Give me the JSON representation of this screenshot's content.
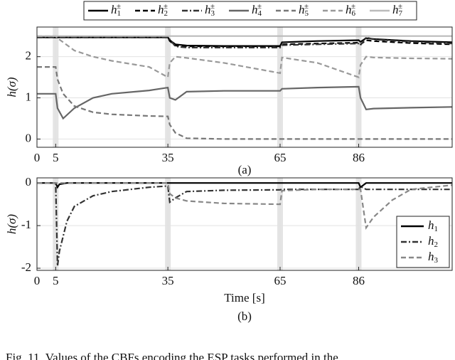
{
  "chart_data": [
    {
      "type": "line",
      "ylabel": "h(σ)",
      "caption": "(a)",
      "grid": true,
      "legend": "top-outside",
      "xlim": [
        0,
        111
      ],
      "ylim": [
        -0.2,
        2.72
      ],
      "xticks": [
        0,
        5,
        35,
        65,
        86
      ],
      "yticks": [
        0,
        1,
        2
      ],
      "highlights": [
        5,
        35,
        65,
        86
      ],
      "x": [
        0,
        5,
        5.5,
        7,
        10,
        15,
        20,
        30,
        35,
        35.5,
        37,
        40,
        50,
        65,
        65.5,
        75,
        86,
        86.5,
        88,
        90,
        100,
        111
      ],
      "series": [
        {
          "name": "h",
          "sub": "1",
          "sup": "±",
          "color": "#000000",
          "dash": "solid",
          "values": [
            2.47,
            2.47,
            2.47,
            2.47,
            2.47,
            2.47,
            2.47,
            2.47,
            2.47,
            2.4,
            2.3,
            2.27,
            2.26,
            2.26,
            2.35,
            2.38,
            2.4,
            2.36,
            2.45,
            2.43,
            2.38,
            2.35
          ]
        },
        {
          "name": "h",
          "sub": "2",
          "sup": "±",
          "color": "#000000",
          "dash": "dashed",
          "values": [
            2.47,
            2.47,
            2.47,
            2.47,
            2.47,
            2.47,
            2.47,
            2.47,
            2.47,
            2.38,
            2.27,
            2.25,
            2.25,
            2.25,
            2.3,
            2.32,
            2.34,
            2.3,
            2.4,
            2.38,
            2.33,
            2.3
          ]
        },
        {
          "name": "h",
          "sub": "3",
          "sup": "±",
          "color": "#333333",
          "dash": "dashdot",
          "values": [
            2.47,
            2.47,
            2.47,
            2.47,
            2.47,
            2.47,
            2.47,
            2.47,
            2.47,
            2.42,
            2.25,
            2.22,
            2.22,
            2.22,
            2.28,
            2.3,
            2.32,
            2.28,
            2.47,
            2.42,
            2.36,
            2.32
          ]
        },
        {
          "name": "h",
          "sub": "4",
          "sup": "±",
          "color": "#666666",
          "dash": "solid",
          "values": [
            1.1,
            1.1,
            0.75,
            0.5,
            0.75,
            1.0,
            1.1,
            1.18,
            1.25,
            1.0,
            0.95,
            1.15,
            1.17,
            1.17,
            1.22,
            1.25,
            1.27,
            1.0,
            0.72,
            0.74,
            0.76,
            0.78
          ]
        },
        {
          "name": "h",
          "sub": "5",
          "sup": "±",
          "color": "#777777",
          "dash": "dashed",
          "values": [
            1.75,
            1.75,
            1.45,
            1.1,
            0.8,
            0.65,
            0.6,
            0.56,
            0.55,
            0.35,
            0.15,
            0.02,
            0,
            0,
            0,
            0,
            0,
            0,
            0,
            0,
            0,
            0
          ]
        },
        {
          "name": "h",
          "sub": "6",
          "sup": "±",
          "color": "#999999",
          "dash": "dashed",
          "values": [
            2.5,
            2.5,
            2.45,
            2.35,
            2.15,
            2.0,
            1.9,
            1.75,
            1.5,
            1.85,
            2.0,
            1.97,
            1.85,
            1.6,
            1.98,
            1.85,
            1.5,
            1.8,
            2.0,
            1.98,
            1.96,
            1.95
          ]
        },
        {
          "name": "h",
          "sub": "7",
          "sup": "±",
          "color": "#bbbbbb",
          "dash": "solid",
          "values": [
            2.5,
            2.5,
            2.5,
            2.5,
            2.5,
            2.5,
            2.5,
            2.5,
            2.5,
            2.5,
            2.5,
            2.5,
            2.5,
            2.5,
            2.5,
            2.5,
            2.5,
            2.5,
            2.5,
            2.5,
            2.5,
            2.5
          ]
        }
      ]
    },
    {
      "type": "line",
      "ylabel": "h(σ)",
      "xlabel": "Time [s]",
      "caption": "(b)",
      "grid": true,
      "legend": "lower right",
      "xlim": [
        0,
        111
      ],
      "ylim": [
        -2.05,
        0.12
      ],
      "xticks": [
        0,
        5,
        35,
        65,
        86
      ],
      "yticks": [
        0,
        -1,
        -2
      ],
      "highlights": [
        5,
        35,
        65,
        86
      ],
      "x": [
        0,
        5,
        5.5,
        6,
        8,
        10,
        15,
        20,
        30,
        35,
        35.5,
        37,
        40,
        50,
        65,
        65.5,
        75,
        86,
        86.5,
        88,
        90,
        95,
        100,
        111
      ],
      "series": [
        {
          "name": "h",
          "sub": "1",
          "color": "#000000",
          "dash": "solid",
          "values": [
            0,
            0,
            -0.1,
            -0.03,
            0,
            0,
            0,
            0,
            0,
            0,
            0,
            0,
            0,
            0,
            0,
            0,
            0,
            0,
            -0.1,
            0,
            0,
            0,
            0,
            0
          ]
        },
        {
          "name": "h",
          "sub": "2",
          "color": "#333333",
          "dash": "dashdot",
          "values": [
            0,
            0,
            -1.95,
            -1.6,
            -0.9,
            -0.55,
            -0.3,
            -0.2,
            -0.1,
            -0.07,
            -0.45,
            -0.35,
            -0.2,
            -0.17,
            -0.16,
            -0.15,
            -0.15,
            -0.15,
            -0.08,
            -0.15,
            -0.15,
            -0.15,
            -0.15,
            -0.15
          ]
        },
        {
          "name": "h",
          "sub": "3",
          "color": "#888888",
          "dash": "dashed",
          "values": [
            0,
            0,
            0,
            0,
            0,
            0,
            0,
            0,
            0,
            0,
            -0.25,
            -0.35,
            -0.42,
            -0.48,
            -0.5,
            -0.18,
            -0.15,
            -0.15,
            -0.15,
            -1.05,
            -0.8,
            -0.4,
            -0.15,
            -0.05
          ]
        }
      ]
    }
  ],
  "caption": "Fig. 11.   Values of the CBFs encoding the ESP tasks performed in the"
}
